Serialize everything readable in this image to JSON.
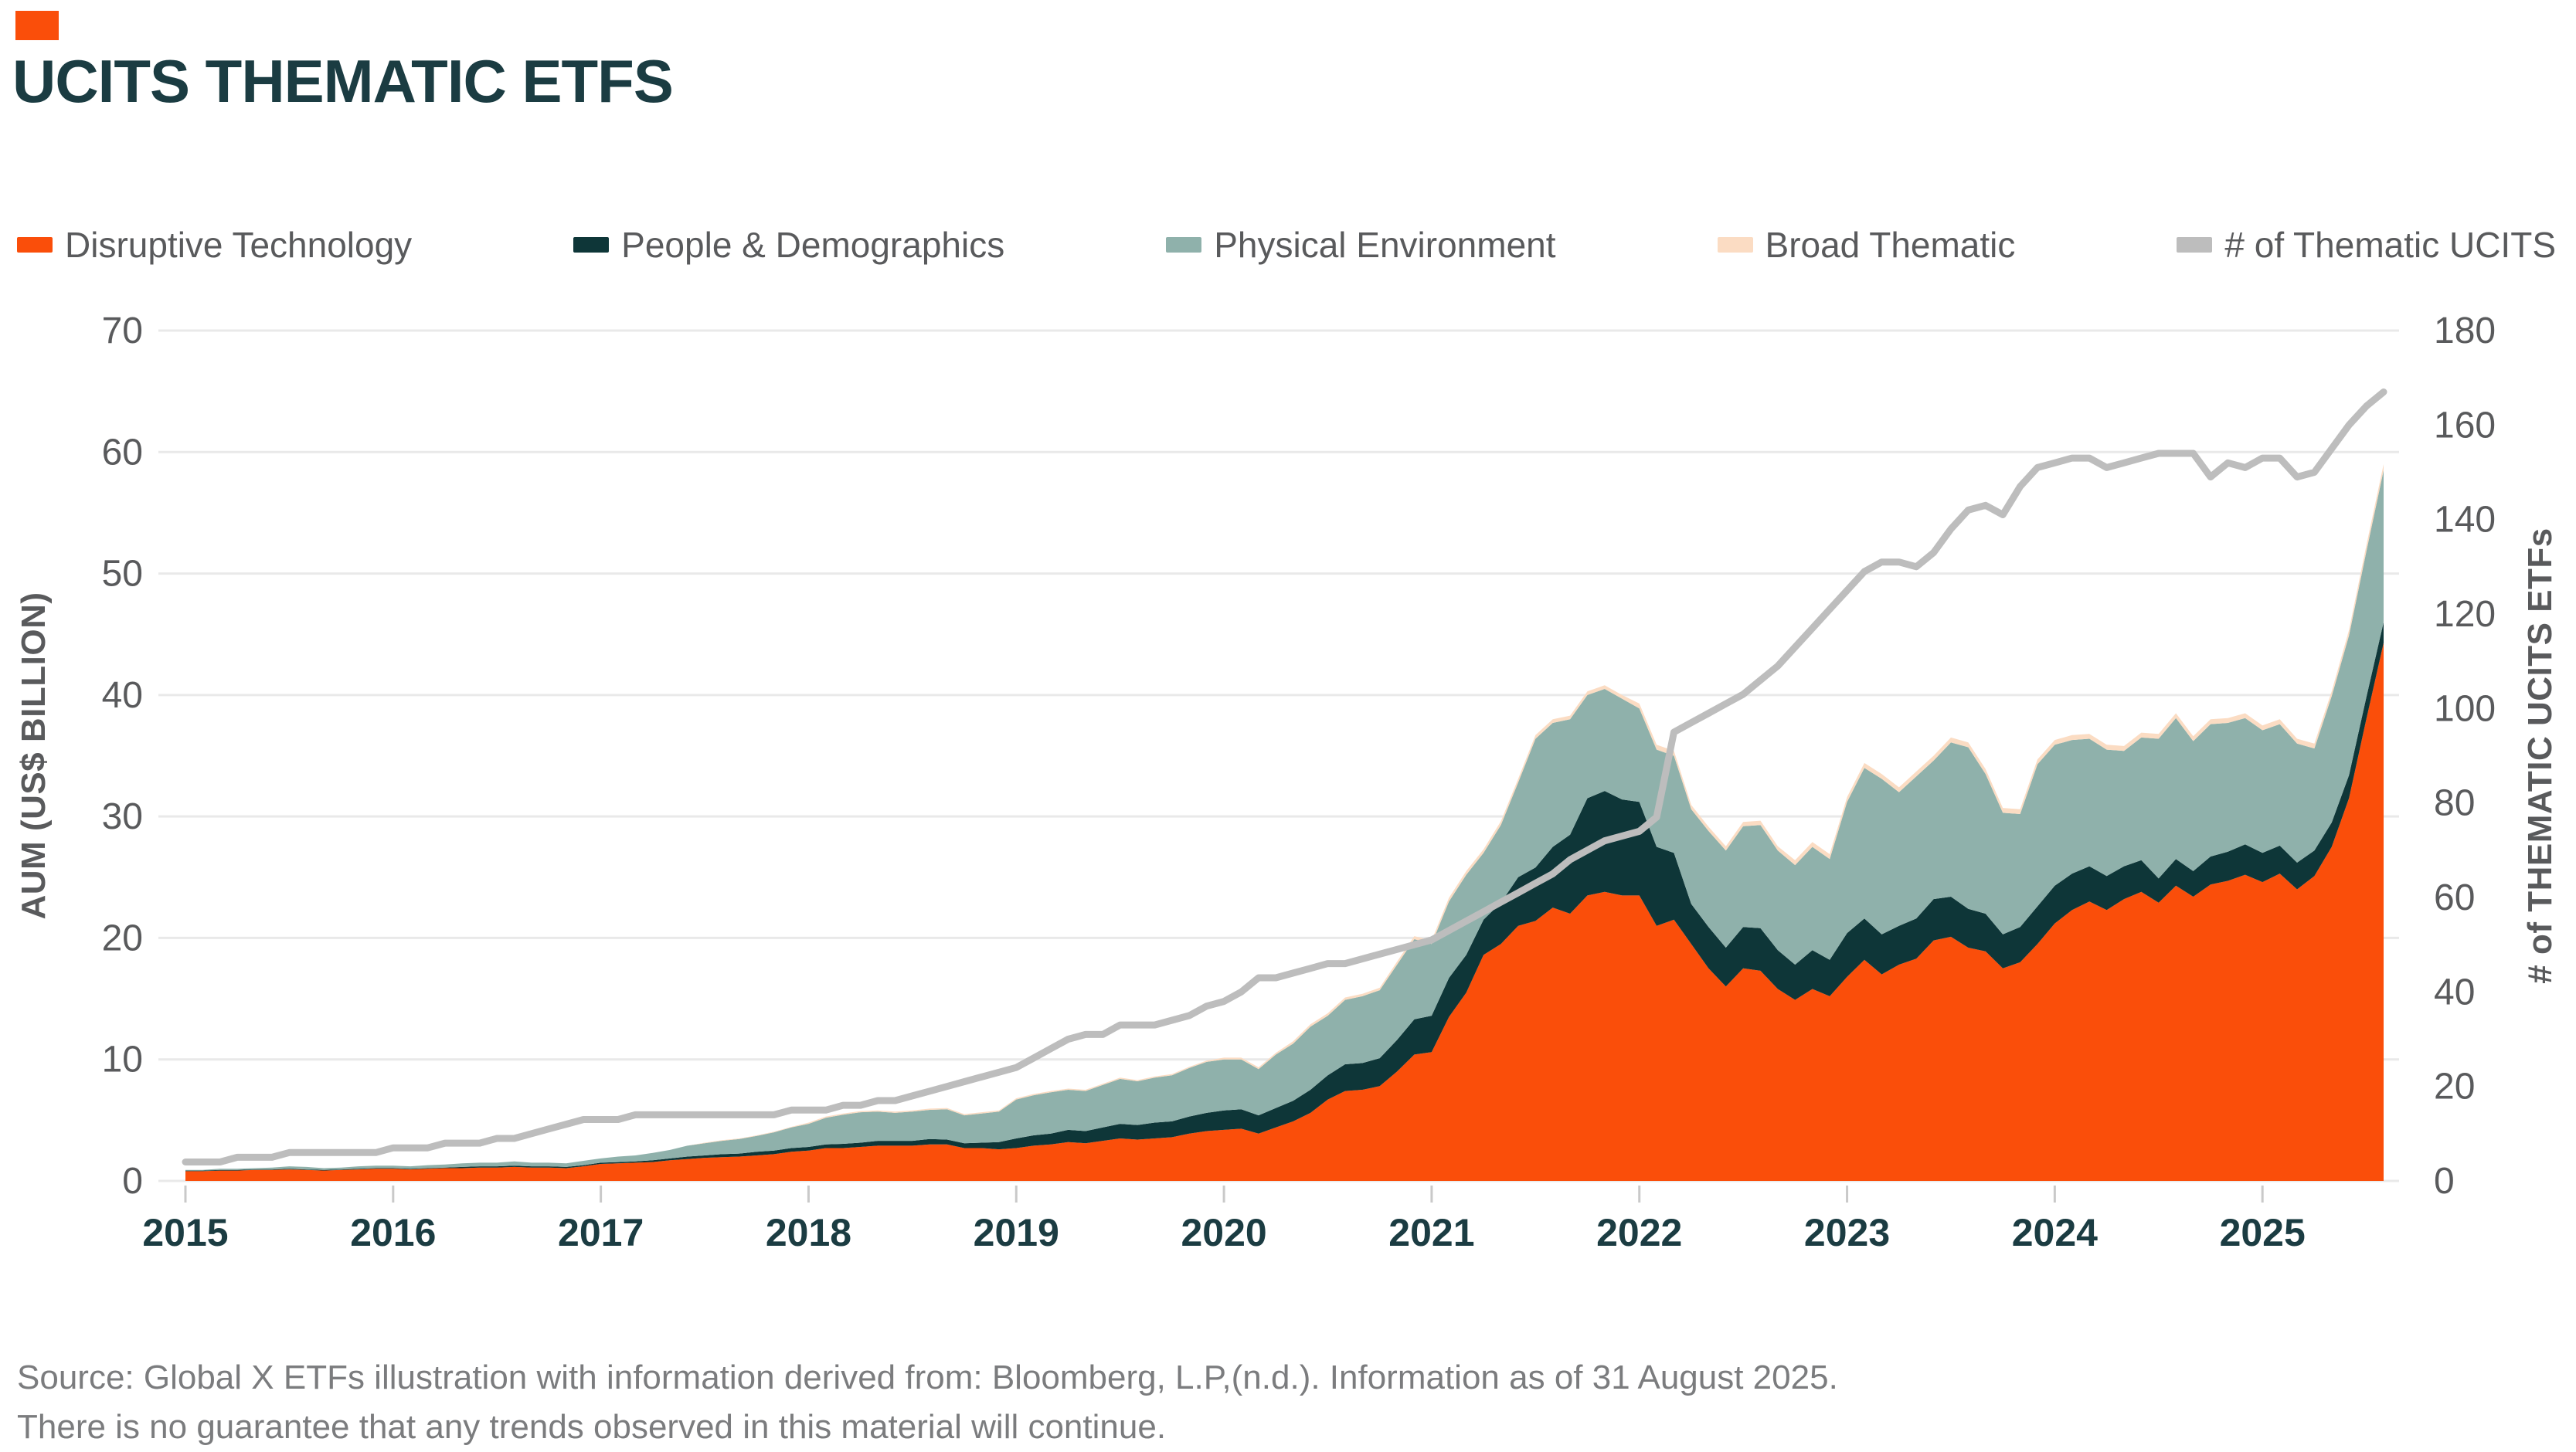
{
  "theme": {
    "accent_color": "#FA4E0A",
    "title_color": "#1B3C42",
    "grid_color": "#E9E9E9",
    "tick_mark_color": "#C9C9C9",
    "legend_text_color": "#595A5C"
  },
  "header": {
    "title": "UCITS THEMATIC ETFS"
  },
  "legend": [
    {
      "label": "Disruptive Technology",
      "color": "#FA4E0A"
    },
    {
      "label": "People & Demographics",
      "color": "#0E3638"
    },
    {
      "label": "Physical Environment",
      "color": "#8FB1AB"
    },
    {
      "label": "Broad Thematic",
      "color": "#FBDCC3"
    },
    {
      "label": "# of Thematic UCITS",
      "color": "#BDBDBD"
    }
  ],
  "source": {
    "line1": "Source: Global X ETFs illustration with information derived from: Bloomberg, L.P,(n.d.). Information as of 31 August 2025.",
    "line2": "There is no guarantee that any trends observed in this material will continue."
  },
  "chart_data": {
    "type": "area",
    "stacked": true,
    "grid": "horizontal",
    "legend_position": "top",
    "x_start": "2015-01",
    "x_end": "2025-08",
    "x_frequency": "monthly",
    "x_tick_labels": [
      "2015",
      "2016",
      "2017",
      "2018",
      "2019",
      "2020",
      "2021",
      "2022",
      "2023",
      "2024",
      "2025"
    ],
    "left_axis": {
      "label": "AUM (US$ BILLION)",
      "range": [
        0,
        70
      ],
      "ticks": [
        0,
        10,
        20,
        30,
        40,
        50,
        60,
        70
      ]
    },
    "right_axis": {
      "label": "# of THEMATIC UCITS ETFs",
      "range": [
        0,
        180
      ],
      "ticks": [
        0,
        20,
        40,
        60,
        80,
        100,
        120,
        140,
        160,
        180
      ]
    },
    "series": [
      {
        "name": "Disruptive Technology",
        "type": "area",
        "axis": "left",
        "color": "#FA4E0A",
        "values": [
          0.8,
          0.8,
          0.85,
          0.85,
          0.9,
          0.9,
          0.95,
          0.9,
          0.85,
          0.9,
          0.95,
          1.0,
          1.0,
          0.95,
          1.0,
          1.05,
          1.05,
          1.1,
          1.1,
          1.15,
          1.1,
          1.1,
          1.05,
          1.2,
          1.4,
          1.45,
          1.5,
          1.55,
          1.7,
          1.8,
          1.9,
          1.95,
          2.0,
          2.1,
          2.2,
          2.4,
          2.5,
          2.7,
          2.7,
          2.8,
          2.9,
          2.9,
          2.9,
          3.0,
          3.0,
          2.7,
          2.7,
          2.6,
          2.7,
          2.9,
          3.0,
          3.2,
          3.1,
          3.3,
          3.5,
          3.4,
          3.5,
          3.6,
          3.9,
          4.1,
          4.2,
          4.3,
          3.9,
          4.4,
          4.9,
          5.6,
          6.7,
          7.4,
          7.5,
          7.8,
          9.0,
          10.4,
          10.6,
          13.5,
          15.5,
          18.6,
          19.5,
          21.0,
          21.4,
          22.5,
          22.0,
          23.5,
          23.8,
          23.5,
          23.5,
          21.0,
          21.5,
          19.5,
          17.5,
          16.0,
          17.5,
          17.3,
          15.8,
          14.9,
          15.8,
          15.2,
          16.8,
          18.2,
          17.0,
          17.8,
          18.3,
          19.8,
          20.1,
          19.2,
          18.9,
          17.5,
          18.0,
          19.5,
          21.2,
          22.3,
          23.0,
          22.3,
          23.2,
          23.8,
          22.9,
          24.3,
          23.4,
          24.4,
          24.7,
          25.2,
          24.6,
          25.3,
          24.0,
          25.1,
          27.5,
          31.5,
          38.0,
          44.3
        ]
      },
      {
        "name": "People & Demographics",
        "type": "area",
        "axis": "left",
        "color": "#0E3638",
        "values": [
          0.05,
          0.05,
          0.05,
          0.05,
          0.05,
          0.05,
          0.05,
          0.05,
          0.05,
          0.05,
          0.05,
          0.05,
          0.05,
          0.05,
          0.05,
          0.05,
          0.1,
          0.1,
          0.1,
          0.1,
          0.1,
          0.1,
          0.1,
          0.1,
          0.1,
          0.1,
          0.1,
          0.15,
          0.15,
          0.2,
          0.2,
          0.25,
          0.25,
          0.3,
          0.3,
          0.3,
          0.3,
          0.3,
          0.35,
          0.35,
          0.4,
          0.4,
          0.4,
          0.45,
          0.4,
          0.4,
          0.45,
          0.6,
          0.8,
          0.85,
          0.9,
          1.0,
          1.0,
          1.1,
          1.2,
          1.2,
          1.3,
          1.3,
          1.4,
          1.5,
          1.6,
          1.6,
          1.5,
          1.6,
          1.7,
          1.9,
          2.0,
          2.2,
          2.2,
          2.3,
          2.6,
          2.9,
          3.0,
          3.2,
          3.1,
          2.9,
          3.4,
          4.0,
          4.4,
          5.0,
          6.5,
          8.0,
          8.3,
          7.9,
          7.7,
          6.5,
          5.5,
          3.3,
          3.4,
          3.2,
          3.4,
          3.5,
          3.2,
          2.9,
          3.2,
          3.0,
          3.6,
          3.4,
          3.3,
          3.2,
          3.3,
          3.4,
          3.3,
          3.2,
          3.1,
          2.8,
          2.9,
          3.1,
          3.1,
          3.0,
          2.9,
          2.8,
          2.7,
          2.6,
          2.0,
          2.2,
          2.1,
          2.3,
          2.4,
          2.5,
          2.4,
          2.3,
          2.2,
          2.1,
          2.0,
          1.9,
          1.8,
          1.7
        ]
      },
      {
        "name": "Physical Environment",
        "type": "area",
        "axis": "left",
        "color": "#8FB1AB",
        "values": [
          0.05,
          0.05,
          0.1,
          0.1,
          0.1,
          0.15,
          0.2,
          0.2,
          0.15,
          0.15,
          0.2,
          0.2,
          0.2,
          0.2,
          0.25,
          0.25,
          0.3,
          0.3,
          0.3,
          0.35,
          0.3,
          0.3,
          0.3,
          0.35,
          0.35,
          0.45,
          0.5,
          0.6,
          0.7,
          0.9,
          1.0,
          1.1,
          1.2,
          1.3,
          1.5,
          1.7,
          1.9,
          2.2,
          2.4,
          2.5,
          2.4,
          2.3,
          2.4,
          2.4,
          2.5,
          2.3,
          2.4,
          2.5,
          3.2,
          3.3,
          3.4,
          3.3,
          3.3,
          3.5,
          3.7,
          3.6,
          3.7,
          3.8,
          4.0,
          4.2,
          4.2,
          4.1,
          3.8,
          4.4,
          4.7,
          5.2,
          4.9,
          5.3,
          5.5,
          5.6,
          6.2,
          6.6,
          5.9,
          6.3,
          6.6,
          5.5,
          6.4,
          7.8,
          10.6,
          10.2,
          9.5,
          8.5,
          8.4,
          8.3,
          7.7,
          8.0,
          8.0,
          7.8,
          7.9,
          8.0,
          8.3,
          8.5,
          8.2,
          8.2,
          8.5,
          8.3,
          10.8,
          12.4,
          12.8,
          11.0,
          11.7,
          11.4,
          12.7,
          13.3,
          11.5,
          10.0,
          9.3,
          11.7,
          11.6,
          11.0,
          10.5,
          10.4,
          9.5,
          10.1,
          11.5,
          11.6,
          10.7,
          10.9,
          10.6,
          10.4,
          10.1,
          10.0,
          9.8,
          8.4,
          10.4,
          11.5,
          12.0,
          12.5
        ]
      },
      {
        "name": "Broad Thematic",
        "type": "area",
        "axis": "left",
        "color": "#FBDCC3",
        "values": [
          0,
          0,
          0,
          0,
          0,
          0,
          0,
          0,
          0,
          0,
          0,
          0,
          0,
          0,
          0,
          0,
          0,
          0,
          0,
          0,
          0,
          0,
          0,
          0,
          0,
          0,
          0,
          0,
          0,
          0,
          0.05,
          0.05,
          0.05,
          0.05,
          0.05,
          0.05,
          0.1,
          0.1,
          0.1,
          0.1,
          0.1,
          0.1,
          0.1,
          0.1,
          0.1,
          0.1,
          0.1,
          0.1,
          0.1,
          0.1,
          0.1,
          0.1,
          0.1,
          0.1,
          0.1,
          0.1,
          0.1,
          0.1,
          0.1,
          0.1,
          0.15,
          0.15,
          0.15,
          0.15,
          0.2,
          0.2,
          0.2,
          0.2,
          0.2,
          0.2,
          0.25,
          0.25,
          0.3,
          0.3,
          0.3,
          0.3,
          0.3,
          0.3,
          0.3,
          0.3,
          0.3,
          0.3,
          0.3,
          0.3,
          0.4,
          0.4,
          0.4,
          0.35,
          0.35,
          0.35,
          0.35,
          0.35,
          0.35,
          0.4,
          0.4,
          0.4,
          0.4,
          0.4,
          0.4,
          0.4,
          0.4,
          0.4,
          0.4,
          0.4,
          0.4,
          0.4,
          0.4,
          0.4,
          0.4,
          0.4,
          0.4,
          0.4,
          0.4,
          0.4,
          0.4,
          0.4,
          0.4,
          0.4,
          0.4,
          0.4,
          0.4,
          0.4,
          0.4,
          0.4,
          0.4,
          0.45,
          0.5,
          0.5
        ]
      },
      {
        "name": "# of Thematic UCITS",
        "type": "line",
        "axis": "right",
        "color": "#BDBDBD",
        "values": [
          4,
          4,
          4,
          5,
          5,
          5,
          6,
          6,
          6,
          6,
          6,
          6,
          7,
          7,
          7,
          8,
          8,
          8,
          9,
          9,
          10,
          11,
          12,
          13,
          13,
          13,
          14,
          14,
          14,
          14,
          14,
          14,
          14,
          14,
          14,
          15,
          15,
          15,
          16,
          16,
          17,
          17,
          18,
          19,
          20,
          21,
          22,
          23,
          24,
          26,
          28,
          30,
          31,
          31,
          33,
          33,
          33,
          34,
          35,
          37,
          38,
          40,
          43,
          43,
          44,
          45,
          46,
          46,
          47,
          48,
          49,
          50,
          51,
          53,
          55,
          57,
          59,
          61,
          63,
          65,
          68,
          70,
          72,
          73,
          74,
          77,
          95,
          97,
          99,
          101,
          103,
          106,
          109,
          113,
          117,
          121,
          125,
          129,
          131,
          131,
          130,
          133,
          138,
          142,
          143,
          141,
          147,
          151,
          152,
          153,
          153,
          151,
          152,
          153,
          154,
          154,
          154,
          149,
          152,
          151,
          153,
          153,
          149,
          150,
          155,
          160,
          164,
          167
        ]
      }
    ]
  }
}
